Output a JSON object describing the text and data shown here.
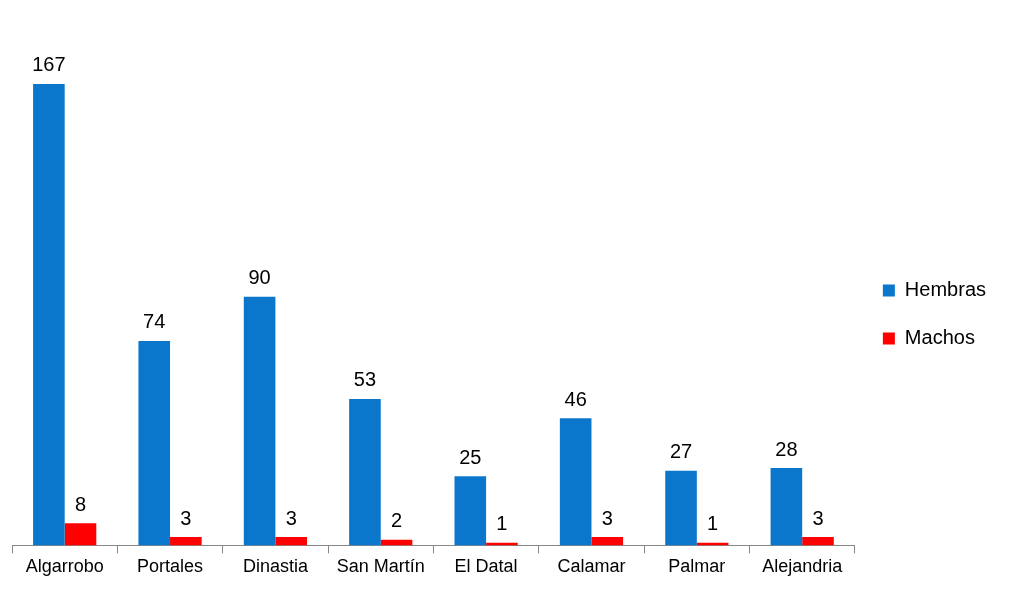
{
  "chart_data": {
    "type": "bar",
    "categories": [
      "Algarrobo",
      "Portales",
      "Dinastia",
      "San Martín",
      "El Datal",
      "Calamar",
      "Palmar",
      "Alejandria"
    ],
    "series": [
      {
        "name": "Hembras",
        "color": "#0b77cc",
        "values": [
          167,
          74,
          90,
          53,
          25,
          46,
          27,
          28
        ]
      },
      {
        "name": "Machos",
        "color": "#ff0000",
        "values": [
          8,
          3,
          3,
          2,
          1,
          3,
          1,
          3
        ]
      }
    ],
    "data_labels": true,
    "grid": false,
    "legend": "right",
    "tick_labels": "x"
  }
}
